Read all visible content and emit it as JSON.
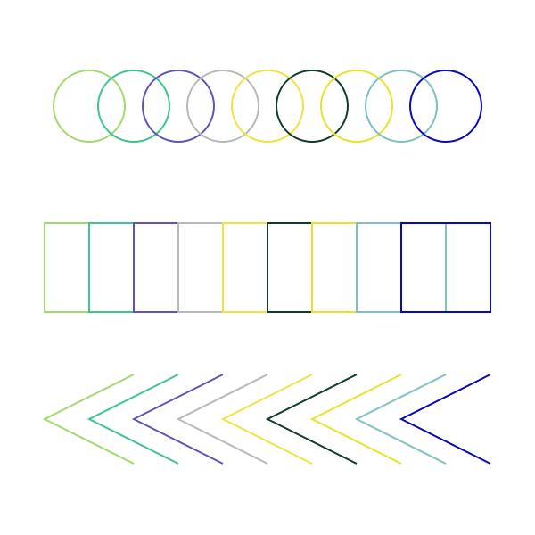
{
  "palette": [
    "#a3d96e",
    "#3ec48e",
    "#5d55b8",
    "#b4bbb8",
    "#ede441",
    "#0f3d28",
    "#e8e22a",
    "#7fc0c0",
    "#0a0ab8"
  ],
  "rows": [
    {
      "shape": "circle",
      "count": 9
    },
    {
      "shape": "rectangle",
      "count": 9
    },
    {
      "shape": "chevron",
      "count": 9
    }
  ]
}
